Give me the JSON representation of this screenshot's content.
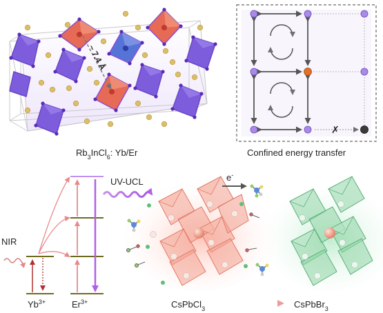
{
  "panels": {
    "crystal": {
      "label": "Rb",
      "label_sub": "3",
      "label_mid": "InCl",
      "label_sub2": "6",
      "label_tail": ": Yb/Er",
      "distance": "~ 7.4 Å"
    },
    "transfer": {
      "label": "Confined energy transfer",
      "blocked_mark": "✗"
    },
    "energy": {
      "nir": "NIR",
      "uvucl": "UV-UCL",
      "yb": "Yb",
      "yb_sup": "3+",
      "er": "Er",
      "er_sup": "3+"
    },
    "nanocrystals": {
      "electron": "e",
      "electron_sup": "-",
      "cl_a": "CsPbCl",
      "cl_a_sub": "3",
      "br_a": "CsPbBr",
      "br_a_sub": "3"
    }
  },
  "colors": {
    "ion_purple": "#9b7be6",
    "ion_orange": "#e0702a",
    "ion_black": "#333333",
    "octa_red": "#e2584a",
    "octa_blue": "#4f6fd8",
    "octa_violet": "#7a5ad8",
    "rb_gold": "#d4b45e",
    "nc_red": "#f08a78",
    "nc_green": "#6cc58a",
    "uv_purple": "#b470e6",
    "level_olive": "#6d6a1c",
    "arrow_red": "#c25050"
  }
}
